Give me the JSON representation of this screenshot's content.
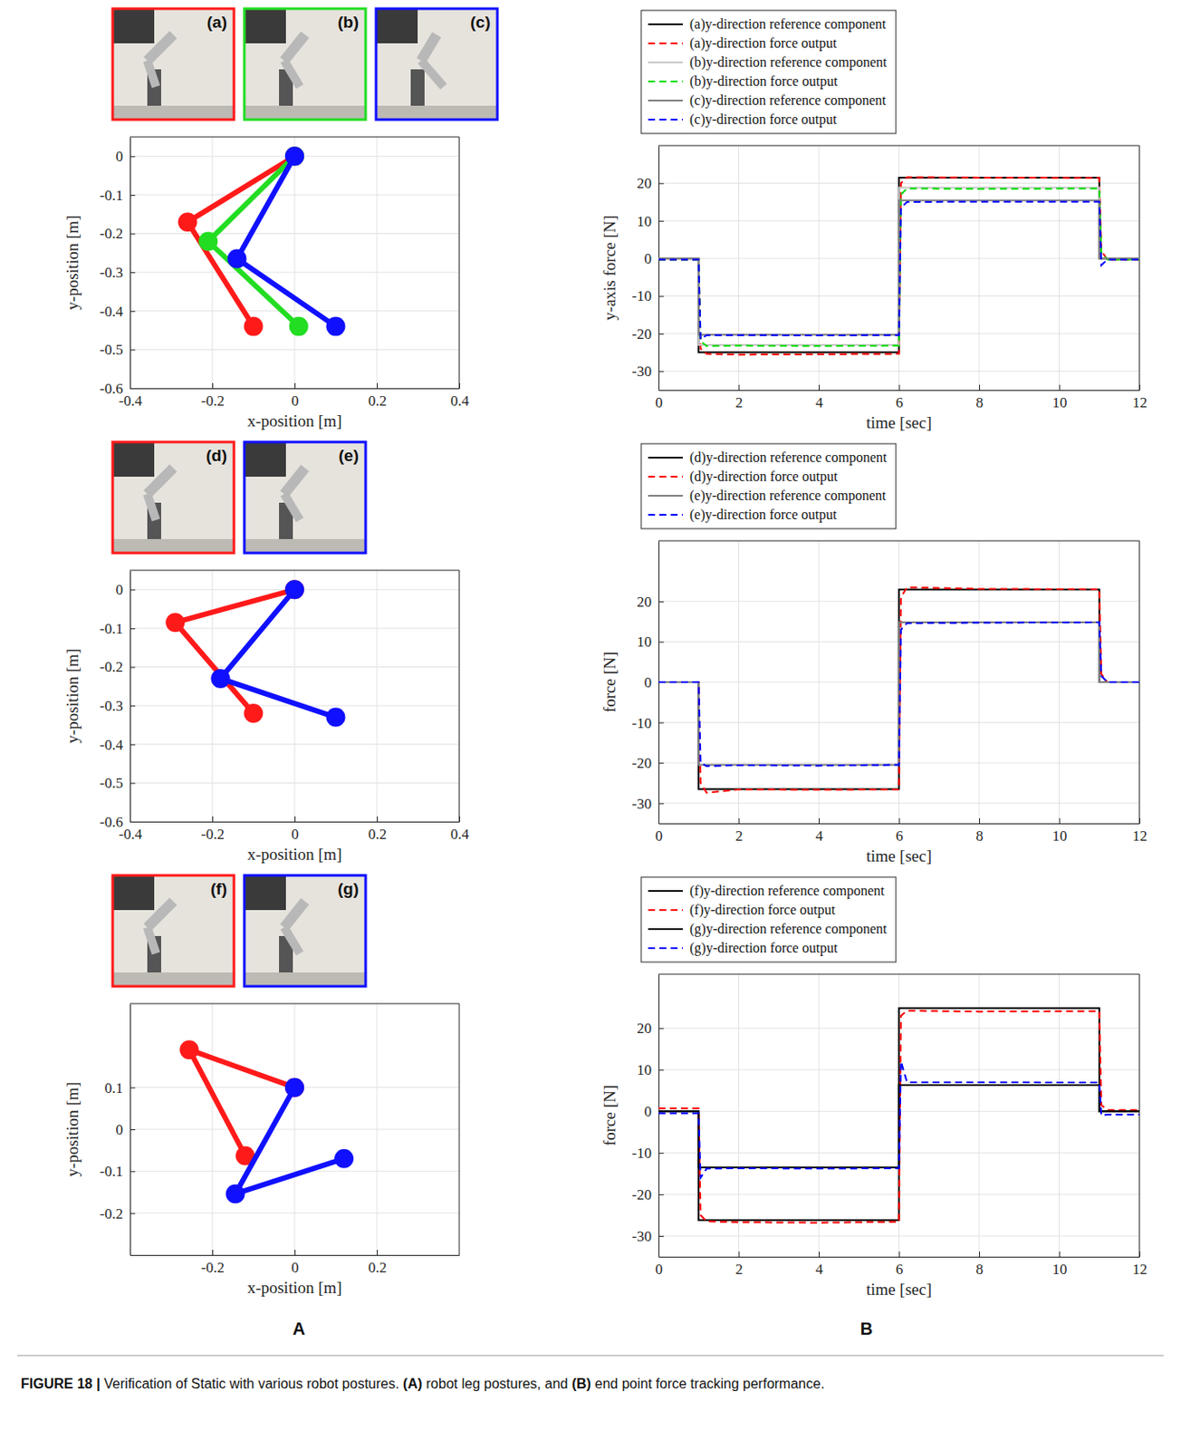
{
  "chart_data": [
    {
      "type": "line",
      "x_label": "x-position [m]",
      "y_label": "y-position [m]",
      "xlim": [
        -0.4,
        0.4
      ],
      "xticks": [
        -0.4,
        -0.2,
        0,
        0.2,
        0.4
      ],
      "ylim": [
        -0.6,
        0.05
      ],
      "yticks": [
        -0.6,
        -0.5,
        -0.4,
        -0.3,
        -0.2,
        -0.1,
        0
      ],
      "grid": true,
      "marker": "circle",
      "series": [
        {
          "name": "(a)",
          "color": "#ff1a1a",
          "x": [
            0,
            -0.26,
            -0.1
          ],
          "values": [
            0,
            -0.17,
            -0.44
          ]
        },
        {
          "name": "(b)",
          "color": "#22dd22",
          "x": [
            0,
            -0.21,
            0.01
          ],
          "values": [
            0,
            -0.22,
            -0.44
          ]
        },
        {
          "name": "(c)",
          "color": "#1010ff",
          "x": [
            0,
            -0.14,
            0.1
          ],
          "values": [
            0,
            -0.265,
            -0.44
          ]
        }
      ]
    },
    {
      "type": "line",
      "x_label": "time [sec]",
      "y_label": "y-axis force [N]",
      "xlim": [
        0,
        12
      ],
      "xticks": [
        0,
        2,
        4,
        6,
        8,
        10,
        12
      ],
      "ylim": [
        -35,
        30
      ],
      "yticks": [
        -30,
        -20,
        -10,
        0,
        10,
        20
      ],
      "grid": true,
      "legend": "top",
      "series": [
        {
          "name": "(a)y-direction reference component",
          "color": "#000000",
          "line_style": "solid",
          "x": [
            0,
            1,
            1,
            6,
            6,
            11,
            11,
            12
          ],
          "values": [
            0,
            0,
            -25,
            -25,
            21.5,
            21.5,
            0,
            0
          ]
        },
        {
          "name": "(a)y-direction force output",
          "color": "#ff0000",
          "line_style": "dashed",
          "x": [
            0,
            1,
            1.05,
            1.2,
            2,
            4,
            6,
            6.05,
            6.2,
            8,
            11,
            11.05,
            11.2,
            12
          ],
          "values": [
            -0.3,
            -0.3,
            -24,
            -25.4,
            -25.6,
            -25.5,
            -25.4,
            20,
            21.6,
            21.5,
            21.4,
            2,
            -0.3,
            -0.3
          ]
        },
        {
          "name": "(b)y-direction reference component",
          "color": "#c8c8c8",
          "line_style": "solid",
          "x": [
            0,
            1,
            1,
            6,
            6,
            11,
            11,
            12
          ],
          "values": [
            0,
            0,
            -23,
            -23,
            18.8,
            18.8,
            0,
            0
          ]
        },
        {
          "name": "(b)y-direction force output",
          "color": "#00dd00",
          "line_style": "dashed",
          "x": [
            0,
            1,
            1.05,
            1.2,
            2,
            4,
            6,
            6.05,
            6.2,
            8,
            11,
            11.05,
            11.2,
            12
          ],
          "values": [
            -0.3,
            -0.3,
            -22,
            -23.3,
            -23.2,
            -23.3,
            -23.2,
            17,
            18.6,
            18.5,
            18.6,
            1.5,
            -0.3,
            -0.3
          ]
        },
        {
          "name": "(c)y-direction reference component",
          "color": "#7f7f7f",
          "line_style": "solid",
          "x": [
            0,
            1,
            1,
            6,
            6,
            11,
            11,
            12
          ],
          "values": [
            0,
            0,
            -20.3,
            -20.3,
            15.4,
            15.4,
            0,
            0
          ]
        },
        {
          "name": "(c)y-direction force output",
          "color": "#0000ff",
          "line_style": "dashed",
          "x": [
            0,
            1,
            1.05,
            1.2,
            2,
            4,
            6,
            6.05,
            6.2,
            8,
            11,
            11.05,
            11.2,
            12
          ],
          "values": [
            -0.3,
            -0.3,
            -21.5,
            -20.4,
            -20.4,
            -20.5,
            -20.4,
            13.5,
            15,
            15.1,
            15.1,
            -1.8,
            -0.3,
            -0.3
          ]
        }
      ]
    },
    {
      "type": "line",
      "x_label": "x-position [m]",
      "y_label": "y-position [m]",
      "xlim": [
        -0.4,
        0.4
      ],
      "xticks": [
        -0.4,
        -0.2,
        0,
        0.2,
        0.4
      ],
      "ylim": [
        -0.6,
        0.05
      ],
      "yticks": [
        -0.6,
        -0.5,
        -0.4,
        -0.3,
        -0.2,
        -0.1,
        0
      ],
      "grid": true,
      "marker": "circle",
      "series": [
        {
          "name": "(d)",
          "color": "#ff1a1a",
          "x": [
            0,
            -0.29,
            -0.1
          ],
          "values": [
            0,
            -0.085,
            -0.32
          ]
        },
        {
          "name": "(e)",
          "color": "#1010ff",
          "x": [
            0,
            -0.18,
            0.1
          ],
          "values": [
            0,
            -0.23,
            -0.33
          ]
        }
      ]
    },
    {
      "type": "line",
      "x_label": "time [sec]",
      "y_label": "force [N]",
      "xlim": [
        0,
        12
      ],
      "xticks": [
        0,
        2,
        4,
        6,
        8,
        10,
        12
      ],
      "ylim": [
        -35,
        35
      ],
      "yticks": [
        -30,
        -20,
        -10,
        0,
        10,
        20
      ],
      "grid": true,
      "legend": "top",
      "series": [
        {
          "name": "(d)y-direction reference component",
          "color": "#000000",
          "line_style": "solid",
          "x": [
            0,
            1,
            1,
            6,
            6,
            11,
            11,
            12
          ],
          "values": [
            0,
            0,
            -26.5,
            -26.5,
            22.9,
            22.9,
            0,
            0
          ]
        },
        {
          "name": "(d)y-direction force output",
          "color": "#ff0000",
          "line_style": "dashed",
          "x": [
            0,
            1,
            1.05,
            1.2,
            2,
            4,
            6,
            6.05,
            6.2,
            8,
            11,
            11.05,
            11.2,
            12
          ],
          "values": [
            0,
            0,
            -25,
            -27.4,
            -26.6,
            -26.7,
            -26.6,
            21,
            23.5,
            23.1,
            23,
            2,
            0,
            0
          ]
        },
        {
          "name": "(e)y-direction reference component",
          "color": "#7f7f7f",
          "line_style": "solid",
          "x": [
            0,
            1,
            1,
            6,
            6,
            11,
            11,
            12
          ],
          "values": [
            0,
            0,
            -20.5,
            -20.5,
            14.8,
            14.8,
            0,
            0
          ]
        },
        {
          "name": "(e)y-direction force output",
          "color": "#0000ff",
          "line_style": "dashed",
          "x": [
            0,
            1,
            1.05,
            1.2,
            2,
            4,
            6,
            6.05,
            6.2,
            8,
            11,
            11.05,
            11.2,
            12
          ],
          "values": [
            0,
            0,
            -20,
            -20.8,
            -20.6,
            -20.7,
            -20.5,
            13,
            14.6,
            14.7,
            14.8,
            1.5,
            0,
            0
          ]
        }
      ]
    },
    {
      "type": "line",
      "x_label": "x-position [m]",
      "y_label": "y-position [m]",
      "xlim": [
        -0.4,
        0.4
      ],
      "xticks": [
        -0.2,
        0,
        0.2
      ],
      "ylim": [
        -0.3,
        0.3
      ],
      "yticks": [
        -0.2,
        -0.1,
        0,
        0.1
      ],
      "grid": true,
      "marker": "circle",
      "series": [
        {
          "name": "(f)",
          "color": "#ff1a1a",
          "x": [
            0,
            -0.256,
            -0.12
          ],
          "values": [
            0.1,
            0.19,
            -0.063
          ]
        },
        {
          "name": "(g)",
          "color": "#1010ff",
          "x": [
            0,
            -0.144,
            0.12
          ],
          "values": [
            0.1,
            -0.154,
            -0.07
          ]
        }
      ]
    },
    {
      "type": "line",
      "x_label": "time [sec]",
      "y_label": "force [N]",
      "xlim": [
        0,
        12
      ],
      "xticks": [
        0,
        2,
        4,
        6,
        8,
        10,
        12
      ],
      "ylim": [
        -35,
        33
      ],
      "yticks": [
        -30,
        -20,
        -10,
        0,
        10,
        20
      ],
      "grid": true,
      "legend": "top",
      "series": [
        {
          "name": "(f)y-direction reference component",
          "color": "#000000",
          "line_style": "solid",
          "x": [
            0,
            1,
            1,
            6,
            6,
            11,
            11,
            12
          ],
          "values": [
            0,
            0,
            -26.2,
            -26.2,
            24.8,
            24.8,
            0,
            0
          ]
        },
        {
          "name": "(f)y-direction force output",
          "color": "#ff0000",
          "line_style": "dashed",
          "x": [
            0,
            1,
            1.05,
            1.2,
            2,
            4,
            6,
            6.05,
            6.2,
            8,
            11,
            11.05,
            11.2,
            12
          ],
          "values": [
            0.7,
            0.7,
            -25,
            -26.5,
            -26.7,
            -26.8,
            -26.6,
            23,
            24.2,
            24,
            24.1,
            1.5,
            0.3,
            0.3
          ]
        },
        {
          "name": "(g)y-direction reference component",
          "color": "#000000",
          "line_style": "solid",
          "x": [
            0,
            1,
            1,
            6,
            6,
            11,
            11,
            12
          ],
          "values": [
            0,
            0,
            -13.5,
            -13.5,
            6.3,
            6.3,
            0,
            0
          ]
        },
        {
          "name": "(g)y-direction force output",
          "color": "#0000ff",
          "line_style": "dashed",
          "x": [
            0,
            1,
            1.05,
            1.2,
            2,
            4,
            6,
            6.05,
            6.2,
            8,
            11,
            11.05,
            11.2,
            12
          ],
          "values": [
            -0.5,
            -0.5,
            -16,
            -13.8,
            -13.7,
            -13.8,
            -13.7,
            12,
            7,
            7,
            6.9,
            -1,
            -0.8,
            -0.8
          ]
        }
      ]
    }
  ],
  "panel_labels": [
    "A",
    "B"
  ],
  "caption": [
    "FIGURE 18 |",
    " Verification of Static with various robot postures. ",
    "(A)",
    " robot leg postures, and ",
    "(B)",
    " end point force tracking performance."
  ]
}
